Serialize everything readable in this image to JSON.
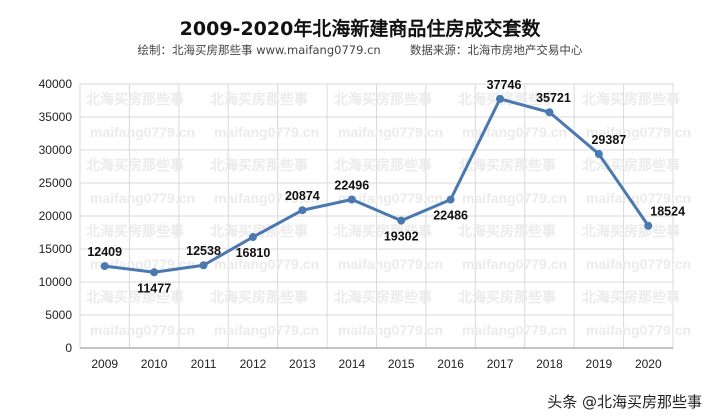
{
  "chart_data": {
    "type": "line",
    "title": "2009-2020年北海新建商品住房成交套数",
    "subtitle": "绘制：北海买房那些事 www.maifang0779.cn        数据来源：北海市房地产交易中心",
    "xlabel": "",
    "ylabel": "",
    "categories": [
      "2009",
      "2010",
      "2011",
      "2012",
      "2013",
      "2014",
      "2015",
      "2016",
      "2017",
      "2018",
      "2019",
      "2020"
    ],
    "series": [
      {
        "values": [
          12409,
          11477,
          12538,
          16810,
          20874,
          22496,
          19302,
          22486,
          37746,
          35721,
          29387,
          18524
        ]
      }
    ],
    "y_ticks": [
      "0",
      "5000",
      "10000",
      "15000",
      "20000",
      "25000",
      "30000",
      "35000",
      "40000"
    ],
    "ylim": [
      0,
      40000
    ],
    "grid": true,
    "legend": "none",
    "colors": {
      "line": "#4a78b0",
      "grid": "#d9d9d9",
      "label": "#111111"
    },
    "watermark": {
      "row_a": "北海买房那些事",
      "row_b": "maifang0779.cn"
    }
  },
  "footer": {
    "credit": "头条 @北海买房那些事"
  }
}
